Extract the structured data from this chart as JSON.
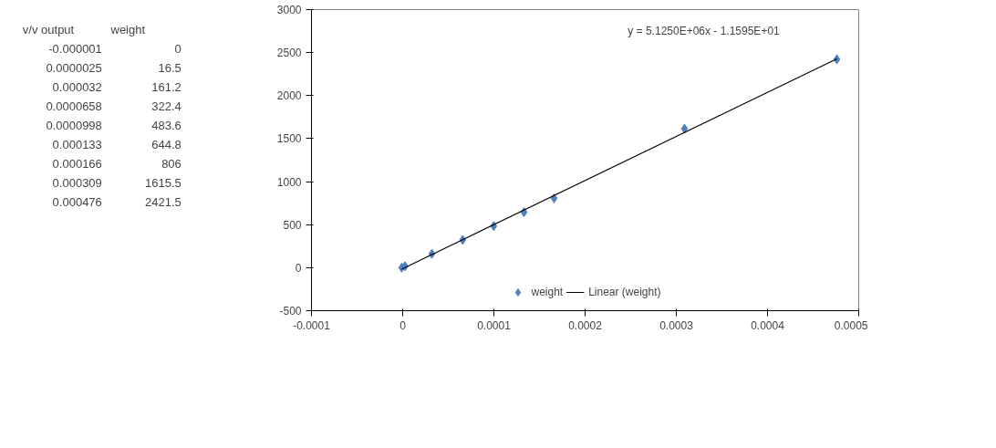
{
  "chart_data": [
    {
      "type": "other",
      "annotations": [
        "v/v output",
        "weight",
        "-0.000001",
        "0",
        "0.0000025",
        "16.5",
        "0.000032",
        "161.2",
        "0.0000658",
        "322.4",
        "0.0000998",
        "483.6",
        "0.000133",
        "644.8",
        "0.000166",
        "806",
        "0.000309",
        "1615.5",
        "0.000476",
        "2421.5"
      ]
    },
    {
      "type": "scatter",
      "legend": "bottom",
      "grid": false,
      "xlim": [
        -0.0001,
        0.0005
      ],
      "xticks": [
        -0.0001,
        {
          "value": 0,
          "label": "0"
        },
        0.0001,
        0.0002,
        0.0003,
        0.0004,
        0.0005
      ],
      "ylim": [
        -500,
        3000
      ],
      "yticks": [
        -500,
        0,
        500,
        1000,
        1500,
        2000,
        2500,
        3000
      ],
      "annotations": [
        "y = 5.1250E+06x - 1.1595E+01"
      ],
      "series": [
        {
          "name": "weight",
          "color": "#4f81bd",
          "marker": "diamond",
          "x": [
            -1e-06,
            2.5e-06,
            3.2e-05,
            6.58e-05,
            9.98e-05,
            0.000133,
            0.000166,
            0.000309,
            0.000476
          ],
          "values": [
            0,
            16.5,
            161.2,
            322.4,
            483.6,
            644.8,
            806,
            1615.5,
            2421.5
          ]
        },
        {
          "name": "Linear (weight)",
          "type": "line",
          "color": "#000000",
          "marker": "none",
          "x": [
            -1e-06,
            0.000476
          ],
          "values": [
            -17,
            2428
          ]
        }
      ]
    }
  ]
}
